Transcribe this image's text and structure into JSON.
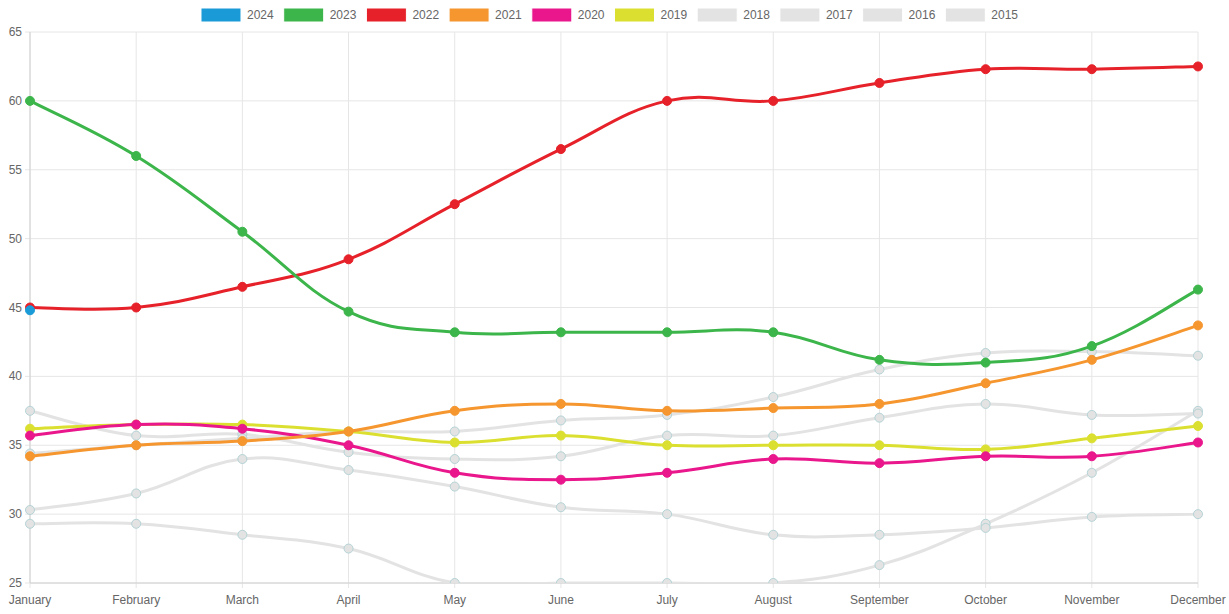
{
  "chart_data": {
    "type": "line",
    "categories": [
      "January",
      "February",
      "March",
      "April",
      "May",
      "June",
      "July",
      "August",
      "September",
      "October",
      "November",
      "December"
    ],
    "ylim": [
      25,
      65
    ],
    "yticks": [
      25,
      30,
      35,
      40,
      45,
      50,
      55,
      60,
      65
    ],
    "grid": true,
    "legend": "top",
    "series": [
      {
        "name": "2024",
        "color": "#1a9bd7",
        "values": [
          44.8,
          null,
          null,
          null,
          null,
          null,
          null,
          null,
          null,
          null,
          null,
          null
        ]
      },
      {
        "name": "2023",
        "color": "#3cb54a",
        "values": [
          60,
          56,
          50.5,
          44.7,
          43.2,
          43.2,
          43.2,
          43.2,
          41.2,
          41.0,
          42.2,
          46.3
        ]
      },
      {
        "name": "2022",
        "color": "#e62129",
        "values": [
          45,
          45,
          46.5,
          48.5,
          52.5,
          56.5,
          60,
          60,
          61.3,
          62.3,
          62.3,
          62.5
        ]
      },
      {
        "name": "2021",
        "color": "#f5962f",
        "values": [
          34.2,
          35,
          35.3,
          36,
          37.5,
          38,
          37.5,
          37.7,
          38,
          39.5,
          41.2,
          43.7
        ]
      },
      {
        "name": "2020",
        "color": "#e9168c",
        "values": [
          35.7,
          36.5,
          36.2,
          35,
          33,
          32.5,
          33,
          34,
          33.7,
          34.2,
          34.2,
          35.2
        ]
      },
      {
        "name": "2019",
        "color": "#dbe030",
        "values": [
          36.2,
          36.5,
          36.5,
          36,
          35.2,
          35.7,
          35,
          35,
          35,
          34.7,
          35.5,
          36.4
        ]
      },
      {
        "name": "2018",
        "color": "#e3e3e3",
        "values": [
          34.4,
          35,
          35.5,
          36,
          36,
          36.8,
          37.2,
          38.5,
          40.5,
          41.7,
          41.8,
          41.5
        ]
      },
      {
        "name": "2017",
        "color": "#e3e3e3",
        "values": [
          37.5,
          35.7,
          35.8,
          34.5,
          34,
          34.2,
          35.7,
          35.7,
          37,
          38,
          37.2,
          37.3
        ]
      },
      {
        "name": "2016",
        "color": "#e3e3e3",
        "values": [
          30.3,
          31.5,
          34,
          33.2,
          32,
          30.5,
          30,
          28.5,
          28.5,
          29.0,
          29.8,
          30
        ]
      },
      {
        "name": "2015",
        "color": "#e3e3e3",
        "values": [
          29.3,
          29.3,
          28.5,
          27.5,
          25,
          25,
          25,
          25,
          26.3,
          29.3,
          33,
          37.5
        ]
      }
    ]
  }
}
